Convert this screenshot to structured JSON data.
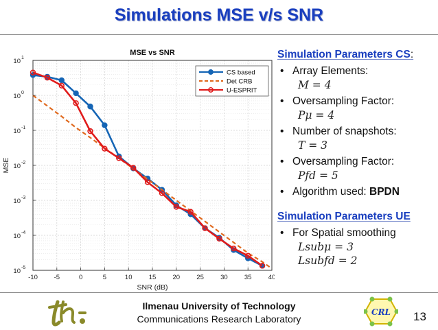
{
  "slide": {
    "title": "Simulations MSE v/s SNR",
    "page_number": "13"
  },
  "footer": {
    "university": "Ilmenau University of Technology",
    "lab": "Communications Research Laboratory",
    "crl_logo_text": "CRL",
    "tu_logo_text": "tu"
  },
  "panel": {
    "cs_heading": "Simulation Parameters CS",
    "cs_colon": ":",
    "items": [
      {
        "label": "Array Elements:",
        "math": "M = 4"
      },
      {
        "label": "Oversampling Factor:",
        "math": "Pμ = 4"
      },
      {
        "label": "Number of snapshots:",
        "math": "T = 3"
      },
      {
        "label": "Oversampling Factor:",
        "math": "Pfd = 5"
      }
    ],
    "algorithm_label": "Algorithm used:",
    "algorithm_value": "BPDN",
    "ue_heading": "Simulation Parameters UE",
    "ue_item": "For Spatial smoothing",
    "ue_math": [
      "Lsubμ = 3",
      "Lsubfd = 2"
    ]
  },
  "chart_data": {
    "type": "line",
    "title": "MSE vs SNR",
    "xlabel": "SNR (dB)",
    "ylabel": "MSE",
    "xlim": [
      -10,
      40
    ],
    "ylim_log10": [
      -5,
      1
    ],
    "y_scale": "log",
    "grid": true,
    "legend_position": "top-right",
    "x_ticks": [
      "-10",
      "-5",
      "0",
      "5",
      "10",
      "15",
      "20",
      "25",
      "30",
      "35",
      "40"
    ],
    "y_ticks": [
      {
        "base": "10",
        "exp": "1",
        "log": 1
      },
      {
        "base": "10",
        "exp": "0",
        "log": 0
      },
      {
        "base": "10",
        "exp": "-1",
        "log": -1
      },
      {
        "base": "10",
        "exp": "-2",
        "log": -2
      },
      {
        "base": "10",
        "exp": "-3",
        "log": -3
      },
      {
        "base": "10",
        "exp": "-4",
        "log": -4
      },
      {
        "base": "10",
        "exp": "-5",
        "log": -5
      }
    ],
    "x": [
      -10,
      -7,
      -4,
      -1,
      2,
      5,
      8,
      11,
      14,
      17,
      20,
      23,
      26,
      29,
      32,
      35,
      38,
      40
    ],
    "series": [
      {
        "name": "CS based",
        "color": "#1565b5",
        "style": "solid",
        "marker": "circle",
        "values": [
          3.8,
          3.4,
          2.7,
          1.15,
          0.48,
          0.14,
          0.018,
          0.0082,
          0.0042,
          0.002,
          0.00072,
          0.0004,
          0.00016,
          8.5e-05,
          3.8e-05,
          2.2e-05,
          1.35e-05,
          null
        ]
      },
      {
        "name": "Det CRB",
        "color": "#e06a1f",
        "style": "dashed",
        "marker": "none",
        "values": [
          1.0,
          0.5,
          0.25,
          0.12,
          0.062,
          0.031,
          0.016,
          0.008,
          0.004,
          0.002,
          0.001,
          0.0005,
          0.00025,
          0.000125,
          6.25e-05,
          3.1e-05,
          1.75e-05,
          1.12e-05
        ]
      },
      {
        "name": "U-ESPRIT",
        "color": "#e01b1b",
        "style": "solid",
        "marker": "circle-open",
        "values": [
          4.5,
          3.2,
          1.9,
          0.6,
          0.095,
          0.03,
          0.016,
          0.0085,
          0.0033,
          0.0016,
          0.00065,
          0.00047,
          0.00016,
          8e-05,
          4.2e-05,
          2.6e-05,
          1.35e-05,
          null
        ]
      }
    ]
  }
}
